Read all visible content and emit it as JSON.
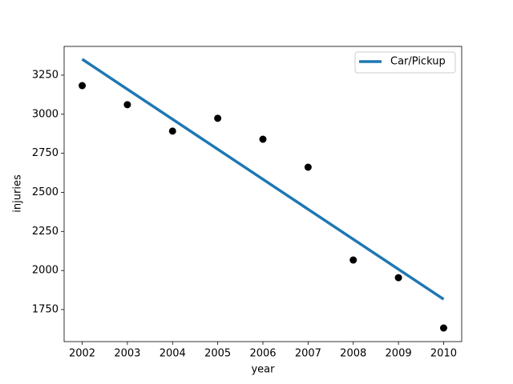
{
  "chart_data": {
    "type": "scatter",
    "x": [
      2002,
      2003,
      2004,
      2005,
      2006,
      2007,
      2008,
      2009,
      2010
    ],
    "series": [
      {
        "color": "#000000",
        "mark": "scatter",
        "values": [
          3183,
          3061,
          2892,
          2974,
          2840,
          2661,
          2067,
          1954,
          1632
        ]
      },
      {
        "name": "Car/Pickup",
        "color": "#1f77b4",
        "mark": "line",
        "values": [
          3352,
          3160,
          2968,
          2776,
          2584,
          2392,
          2200,
          2008,
          1816
        ]
      }
    ],
    "x_label": "year",
    "y_label": "injuries",
    "xlim": [
      2001.6,
      2010.4
    ],
    "xticks": [
      2002,
      2003,
      2004,
      2005,
      2006,
      2007,
      2008,
      2009,
      2010
    ],
    "ylim": [
      1545,
      3434
    ],
    "yticks": [
      1750,
      2000,
      2250,
      2500,
      2750,
      3000,
      3250
    ],
    "legend": "upper right"
  }
}
